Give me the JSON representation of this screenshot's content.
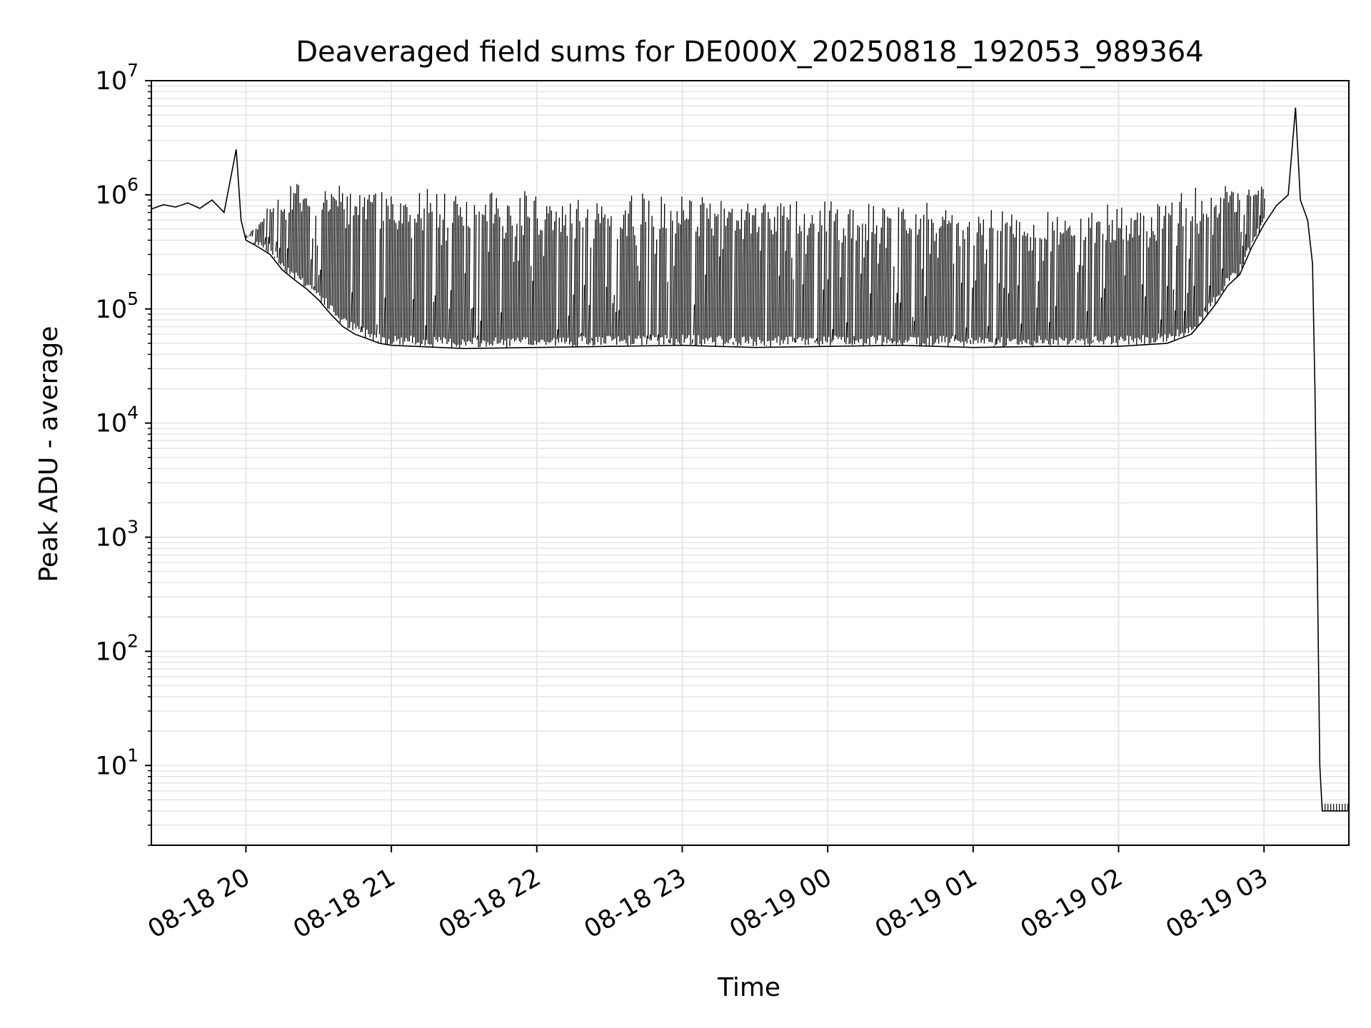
{
  "chart_data": {
    "type": "line",
    "title": "Deaveraged field sums for DE000X_20250818_192053_989364",
    "xlabel": "Time",
    "ylabel": "Peak ADU - average",
    "y_scale": "log",
    "ylim": [
      2,
      10000000
    ],
    "xlim": [
      "2025-08-18 19:21",
      "2025-08-19 03:35"
    ],
    "grid": true,
    "grid_minor": true,
    "line_color": "#000000",
    "grid_color": "#e5e5e5",
    "x_ticks": [
      {
        "value": "2025-08-18 20:00",
        "label": "08-18 20"
      },
      {
        "value": "2025-08-18 21:00",
        "label": "08-18 21"
      },
      {
        "value": "2025-08-18 22:00",
        "label": "08-18 22"
      },
      {
        "value": "2025-08-18 23:00",
        "label": "08-18 23"
      },
      {
        "value": "2025-08-19 00:00",
        "label": "08-19 00"
      },
      {
        "value": "2025-08-19 01:00",
        "label": "08-19 01"
      },
      {
        "value": "2025-08-19 02:00",
        "label": "08-19 02"
      },
      {
        "value": "2025-08-19 03:00",
        "label": "08-19 03"
      }
    ],
    "y_ticks": [
      {
        "value": 10,
        "base": "10",
        "exp": "1"
      },
      {
        "value": 100,
        "base": "10",
        "exp": "2"
      },
      {
        "value": 1000,
        "base": "10",
        "exp": "3"
      },
      {
        "value": 10000,
        "base": "10",
        "exp": "4"
      },
      {
        "value": 100000,
        "base": "10",
        "exp": "5"
      },
      {
        "value": 1000000,
        "base": "10",
        "exp": "6"
      },
      {
        "value": 10000000,
        "base": "10",
        "exp": "7"
      }
    ],
    "series": [
      {
        "points": [
          [
            "2025-08-18 19:21",
            750000
          ],
          [
            "2025-08-18 19:26",
            820000
          ],
          [
            "2025-08-18 19:31",
            780000
          ],
          [
            "2025-08-18 19:36",
            850000
          ],
          [
            "2025-08-18 19:41",
            760000
          ],
          [
            "2025-08-18 19:46",
            900000
          ],
          [
            "2025-08-18 19:51",
            700000
          ],
          [
            "2025-08-18 19:56",
            2500000
          ],
          [
            "2025-08-18 19:58",
            600000
          ],
          [
            "2025-08-18 20:00",
            400000
          ],
          [
            "2025-08-18 20:05",
            350000
          ],
          [
            "2025-08-18 20:10",
            300000
          ],
          [
            "2025-08-18 20:15",
            220000
          ],
          [
            "2025-08-18 20:20",
            180000
          ],
          [
            "2025-08-18 20:25",
            150000
          ],
          [
            "2025-08-18 20:30",
            120000
          ],
          [
            "2025-08-18 20:35",
            90000
          ],
          [
            "2025-08-18 20:40",
            70000
          ],
          [
            "2025-08-18 20:45",
            60000
          ],
          [
            "2025-08-18 20:50",
            55000
          ],
          [
            "2025-08-18 20:55",
            50000
          ],
          [
            "2025-08-18 21:00",
            48000
          ],
          [
            "2025-08-18 21:30",
            45000
          ],
          [
            "2025-08-18 22:00",
            46000
          ],
          [
            "2025-08-18 22:30",
            47000
          ],
          [
            "2025-08-18 23:00",
            48000
          ],
          [
            "2025-08-18 23:30",
            46000
          ],
          [
            "2025-08-19 00:00",
            47000
          ],
          [
            "2025-08-19 00:30",
            48000
          ],
          [
            "2025-08-19 01:00",
            46000
          ],
          [
            "2025-08-19 01:30",
            47000
          ],
          [
            "2025-08-19 02:00",
            47000
          ],
          [
            "2025-08-19 02:20",
            50000
          ],
          [
            "2025-08-19 02:30",
            60000
          ],
          [
            "2025-08-19 02:35",
            80000
          ],
          [
            "2025-08-19 02:40",
            110000
          ],
          [
            "2025-08-19 02:45",
            160000
          ],
          [
            "2025-08-19 02:50",
            200000
          ],
          [
            "2025-08-19 02:55",
            350000
          ],
          [
            "2025-08-19 03:00",
            550000
          ],
          [
            "2025-08-19 03:05",
            800000
          ],
          [
            "2025-08-19 03:10",
            1000000
          ],
          [
            "2025-08-19 03:13",
            5800000
          ],
          [
            "2025-08-19 03:15",
            900000
          ],
          [
            "2025-08-19 03:18",
            600000
          ],
          [
            "2025-08-19 03:20",
            250000
          ],
          [
            "2025-08-19 03:21",
            20000
          ],
          [
            "2025-08-19 03:22",
            500
          ],
          [
            "2025-08-19 03:23",
            10
          ],
          [
            "2025-08-19 03:24",
            4
          ],
          [
            "2025-08-19 03:35",
            4
          ]
        ],
        "upper_envelope_points": [
          [
            "2025-08-18 20:00",
            420000
          ],
          [
            "2025-08-18 20:10",
            900000
          ],
          [
            "2025-08-18 20:20",
            1300000
          ],
          [
            "2025-08-18 20:30",
            1400000
          ],
          [
            "2025-08-18 21:00",
            1300000
          ],
          [
            "2025-08-18 21:30",
            1250000
          ],
          [
            "2025-08-18 22:00",
            1200000
          ],
          [
            "2025-08-18 22:30",
            1150000
          ],
          [
            "2025-08-18 23:00",
            1100000
          ],
          [
            "2025-08-18 23:30",
            1050000
          ],
          [
            "2025-08-19 00:00",
            1000000
          ],
          [
            "2025-08-19 00:30",
            950000
          ],
          [
            "2025-08-19 01:00",
            900000
          ],
          [
            "2025-08-19 01:30",
            900000
          ],
          [
            "2025-08-19 02:00",
            950000
          ],
          [
            "2025-08-19 02:20",
            1100000
          ],
          [
            "2025-08-19 02:40",
            1300000
          ],
          [
            "2025-08-19 03:00",
            1400000
          ]
        ]
      }
    ]
  }
}
